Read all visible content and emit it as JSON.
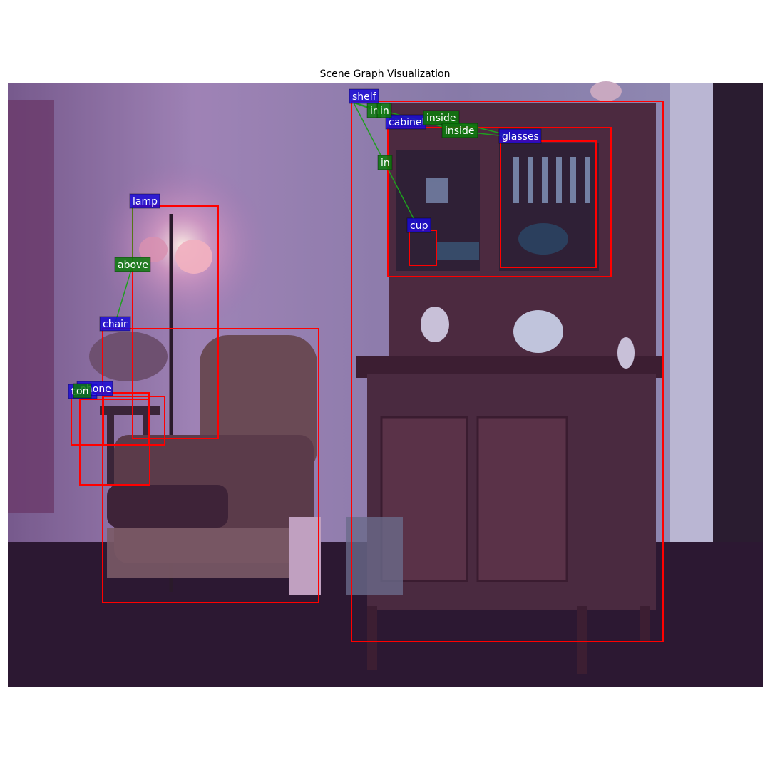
{
  "title": "Scene Graph Visualization",
  "colors": {
    "box": "#ff0000",
    "object_label_bg": "#1a0ad6",
    "relation_label_bg": "#0b7a0b",
    "edge": "#1f9e1f"
  },
  "objects": [
    {
      "id": "shelf",
      "label": "shelf"
    },
    {
      "id": "cabinet",
      "label": "cabinet"
    },
    {
      "id": "glasses",
      "label": "glasses"
    },
    {
      "id": "cup",
      "label": "cup"
    },
    {
      "id": "lamp",
      "label": "lamp"
    },
    {
      "id": "chair",
      "label": "chair"
    },
    {
      "id": "phone",
      "label": "phone"
    },
    {
      "id": "table",
      "label": "table"
    }
  ],
  "relations": [
    {
      "id": "r1",
      "label": "in",
      "subject": "shelf",
      "object": "cabinet"
    },
    {
      "id": "r2",
      "label": "inside",
      "subject": "cabinet",
      "object": "glasses"
    },
    {
      "id": "r3",
      "label": "inside",
      "subject": "shelf",
      "object": "glasses"
    },
    {
      "id": "r4",
      "label": "in",
      "subject": "shelf",
      "object": "cup"
    },
    {
      "id": "r5",
      "label": "above",
      "subject": "lamp",
      "object": "chair"
    },
    {
      "id": "r6",
      "label": "on",
      "subject": "phone",
      "object": "table"
    }
  ]
}
